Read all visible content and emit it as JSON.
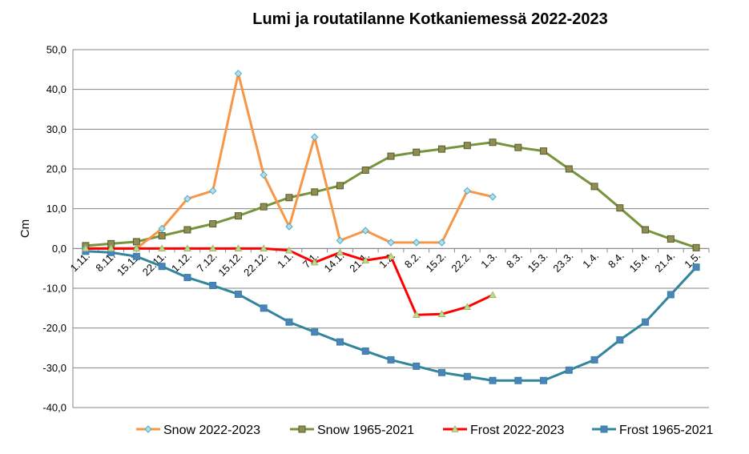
{
  "chart_data": {
    "type": "line",
    "title": "Lumi ja routatilanne Kotkaniemessä 2022-2023",
    "xlabel": "",
    "ylabel": "Cm",
    "ylim": [
      -40,
      50
    ],
    "ytick_step": 10,
    "ytick_labels": [
      "-40,0",
      "-30,0",
      "-20,0",
      "-10,0",
      "0,0",
      "10,0",
      "20,0",
      "30,0",
      "40,0",
      "50,0"
    ],
    "grid": true,
    "legend_position": "bottom",
    "categories": [
      "1.11.",
      "8.11.",
      "15.11.",
      "22.11.",
      "1.12.",
      "7.12.",
      "15.12.",
      "22.12.",
      "1.1.",
      "7.1.",
      "14.1.",
      "21.1.",
      "1.2.",
      "8.2.",
      "15.2.",
      "22.2.",
      "1.3.",
      "8.3.",
      "15.3.",
      "23.3.",
      "1.4.",
      "8.4.",
      "15.4.",
      "21.4.",
      "1.5."
    ],
    "series": [
      {
        "name": "Snow 2022-2023",
        "color": "#f79646",
        "marker": "diamond",
        "marker_fill": "#b7dee8",
        "marker_stroke": "#4bacc6",
        "values": [
          0,
          0,
          0,
          5,
          12.5,
          14.5,
          44,
          18.5,
          5.5,
          28,
          2,
          4.5,
          1.5,
          1.5,
          1.5,
          14.5,
          13,
          null,
          null,
          null,
          null,
          null,
          null,
          null,
          null
        ]
      },
      {
        "name": "Snow 1965-2021",
        "color": "#77933c",
        "marker": "square",
        "marker_fill": "#948a54",
        "marker_stroke": "#4f6228",
        "values": [
          0.7,
          1.2,
          1.7,
          3.2,
          4.7,
          6.2,
          8.2,
          10.5,
          12.8,
          14.2,
          15.8,
          19.7,
          23.2,
          24.2,
          25,
          25.9,
          26.7,
          25.4,
          24.5,
          20,
          15.6,
          10.2,
          4.7,
          2.4,
          0.2
        ]
      },
      {
        "name": "Frost 2022-2023",
        "color": "#ff0000",
        "marker": "triangle",
        "marker_fill": "#c4d79b",
        "marker_stroke": "#9bbb59",
        "values": [
          0,
          0,
          0,
          0,
          0,
          0,
          0,
          0,
          -0.5,
          -3.5,
          -1,
          -3,
          -2,
          -16.7,
          -16.5,
          -14.7,
          -11.7,
          null,
          null,
          null,
          null,
          null,
          null,
          null,
          null
        ]
      },
      {
        "name": "Frost 1965-2021",
        "color": "#31859c",
        "marker": "square",
        "marker_fill": "#4f81bd",
        "marker_stroke": "#31859c",
        "values": [
          -0.7,
          -1,
          -2,
          -4.5,
          -7.3,
          -9.3,
          -11.5,
          -15,
          -18.5,
          -21,
          -23.5,
          -25.8,
          -28,
          -29.6,
          -31.2,
          -32.2,
          -33.2,
          -33.2,
          -33.2,
          -30.6,
          -28,
          -23,
          -18.5,
          -11.6,
          -4.7
        ]
      }
    ]
  }
}
